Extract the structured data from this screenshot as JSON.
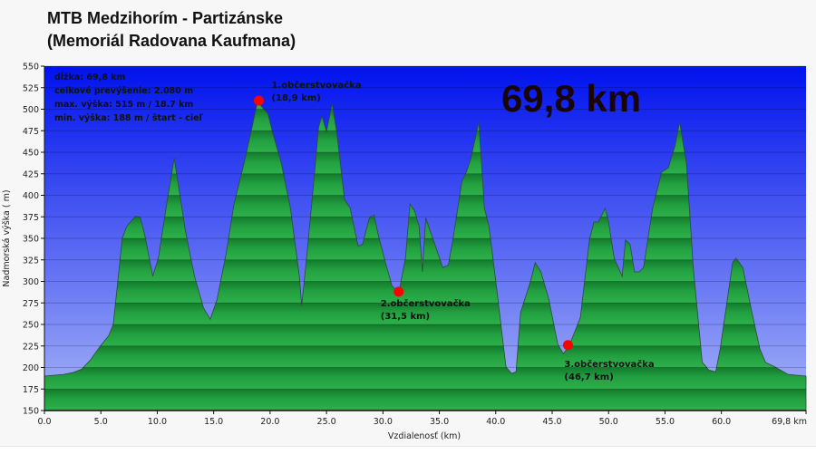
{
  "title_line1": "MTB Medzihorím - Partizánske",
  "title_line2": "(Memoriál Radovana Kaufmana)",
  "info": [
    "dĺžka: 69,8 km",
    "celkové prevýšenie: 2.080 m",
    "max. výška: 515 m / 18.7 km",
    "min. výška: 188 m / štart - cieľ"
  ],
  "big_label": "69,8 km",
  "colors": {
    "sky_top": "#0012ee",
    "sky_bottom": "#a7b4f7",
    "terrain_light": "#27a844",
    "terrain_dark": "#137a2c",
    "marker": "#ff0000"
  },
  "chart_data": {
    "type": "area",
    "xlabel": "Vzdialenosť  (km)",
    "ylabel": "Nadmorská výška ( m)",
    "xlim": [
      0,
      67.5
    ],
    "ylim": [
      150,
      550
    ],
    "grid": true,
    "x_ticks": [
      "0.0",
      "5.0",
      "10.0",
      "15.0",
      "20.0",
      "25.0",
      "30.0",
      "35.0",
      "40.0",
      "45.0",
      "50.0",
      "55.0",
      "60.0"
    ],
    "x_end_label": "69,8 km",
    "y_ticks": [
      150,
      175,
      200,
      225,
      250,
      275,
      300,
      325,
      350,
      375,
      400,
      425,
      450,
      475,
      500,
      525,
      550
    ],
    "x": [
      0.0,
      1.7,
      2.5,
      3.3,
      4.1,
      4.9,
      5.7,
      6.1,
      6.9,
      7.3,
      8.1,
      8.5,
      8.9,
      9.6,
      10.1,
      10.9,
      11.5,
      12.0,
      12.5,
      12.9,
      13.3,
      14.1,
      14.7,
      15.3,
      16.1,
      16.8,
      17.8,
      18.5,
      18.9,
      19.2,
      19.8,
      20.2,
      21.0,
      21.8,
      22.6,
      22.8,
      23.2,
      23.8,
      24.3,
      24.6,
      25.0,
      25.5,
      25.9,
      26.6,
      27.1,
      27.8,
      28.2,
      28.8,
      29.2,
      29.6,
      30.2,
      30.8,
      31.4,
      32.0,
      32.4,
      32.8,
      33.2,
      33.5,
      33.8,
      34.2,
      34.6,
      35.3,
      35.8,
      36.2,
      37.0,
      37.4,
      37.8,
      38.5,
      39.0,
      39.4,
      40.1,
      40.9,
      41.4,
      41.8,
      42.2,
      43.1,
      43.5,
      44.0,
      44.7,
      45.5,
      46.0,
      46.5,
      47.5,
      48.3,
      48.7,
      49.1,
      49.7,
      50.0,
      50.5,
      51.2,
      51.5,
      51.9,
      52.3,
      52.7,
      53.1,
      53.9,
      54.7,
      55.3,
      55.9,
      56.3,
      56.9,
      57.5,
      58.3,
      58.9,
      59.5,
      59.9,
      61.0,
      61.3,
      61.9,
      62.7,
      63.4,
      63.9,
      64.7,
      65.9,
      67.5
    ],
    "y": [
      190,
      192,
      194,
      198,
      209,
      224,
      237,
      250,
      350,
      364,
      376,
      374,
      353,
      306,
      327,
      395,
      443,
      401,
      358,
      332,
      306,
      269,
      256,
      279,
      332,
      390,
      443,
      485,
      510,
      504,
      495,
      474,
      437,
      385,
      306,
      272,
      322,
      406,
      479,
      492,
      474,
      506,
      474,
      395,
      385,
      341,
      343,
      374,
      377,
      353,
      323,
      295,
      286,
      327,
      390,
      382,
      364,
      311,
      374,
      358,
      343,
      316,
      319,
      348,
      416,
      427,
      443,
      485,
      385,
      364,
      290,
      201,
      193,
      195,
      264,
      301,
      322,
      311,
      279,
      227,
      216,
      225,
      258,
      348,
      369,
      369,
      385,
      369,
      327,
      306,
      348,
      343,
      311,
      311,
      316,
      385,
      427,
      432,
      458,
      485,
      437,
      316,
      206,
      197,
      195,
      222,
      322,
      327,
      316,
      264,
      222,
      206,
      201,
      192,
      190
    ],
    "markers": [
      {
        "label": "1.občerstvovačka",
        "sublabel": "(18,9 km)",
        "x": 19.0,
        "y": 510
      },
      {
        "label": "2.občerstvovačka",
        "sublabel": "(31,5 km)",
        "x": 31.4,
        "y": 288
      },
      {
        "label": "3.občerstvovačka",
        "sublabel": "(46,7 km)",
        "x": 46.4,
        "y": 226
      }
    ]
  }
}
